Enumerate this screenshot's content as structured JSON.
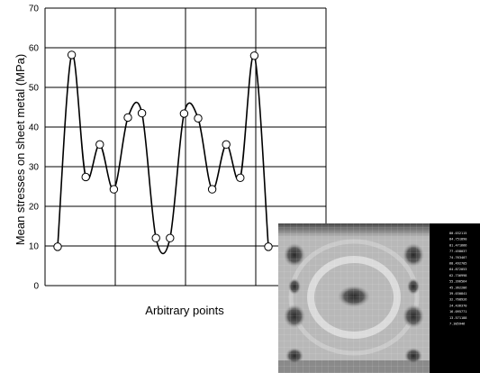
{
  "chart_data": {
    "type": "line",
    "title": "",
    "xlabel": "Arbitrary points",
    "ylabel": "Mean stresses on sheet metal (MPa)",
    "ylim": [
      0,
      70
    ],
    "yticks": [
      0,
      10,
      20,
      30,
      40,
      50,
      60,
      70
    ],
    "xticks": [],
    "grid": true,
    "markers": "open-circle",
    "series": [
      {
        "values": [
          [
            1,
            9.8
          ],
          [
            2,
            58.2
          ],
          [
            3,
            27.4
          ],
          [
            4,
            35.6
          ],
          [
            5,
            24.3
          ],
          [
            6,
            42.4
          ],
          [
            7,
            43.5
          ],
          [
            8,
            12.0
          ],
          [
            9,
            12.0
          ],
          [
            10,
            43.4
          ],
          [
            11,
            42.2
          ],
          [
            12,
            24.3
          ],
          [
            13,
            35.6
          ],
          [
            14,
            27.2
          ],
          [
            15,
            58.0
          ],
          [
            16,
            9.8
          ]
        ]
      }
    ]
  },
  "inset": {
    "description_icon": "stress-contour-map-icon",
    "legend_values": [
      "80.032115",
      "84.751890",
      "81.471666",
      "77.458037",
      "74.763407",
      "68.492705",
      "64.872053",
      "62.736998",
      "55.396564",
      "45.362286",
      "39.030841",
      "32.768926",
      "24.436370",
      "16.095771",
      "13.571188",
      "7.385946"
    ]
  }
}
